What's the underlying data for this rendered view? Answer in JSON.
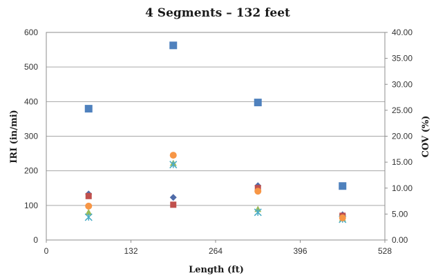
{
  "chart_data": {
    "type": "scatter",
    "title": "4 Segments – 132 feet",
    "xlabel": "Length (ft)",
    "ylabel": "IRI (in/mi)",
    "y2label": "COV (%)",
    "xlim": [
      0,
      528
    ],
    "ylim": [
      0,
      600
    ],
    "y2lim": [
      0,
      40
    ],
    "x_ticks": [
      "0",
      "132",
      "264",
      "396",
      "528"
    ],
    "y_ticks": [
      "0",
      "100",
      "200",
      "300",
      "400",
      "500",
      "600"
    ],
    "y2_ticks": [
      "0.00",
      "5.00",
      "10.00",
      "15.00",
      "20.00",
      "25.00",
      "30.00",
      "35.00",
      "40.00"
    ],
    "grid": true,
    "legend": "none",
    "series": [
      {
        "marker": "square",
        "color": "#4f81bd",
        "axis": "y2",
        "points": [
          [
            66,
            25.3
          ],
          [
            198,
            37.5
          ],
          [
            330,
            26.5
          ],
          [
            462,
            10.4
          ]
        ]
      },
      {
        "marker": "diamond",
        "color": "#4f6ba8",
        "axis": "y",
        "points": [
          [
            66,
            133
          ],
          [
            198,
            123
          ],
          [
            330,
            157
          ],
          [
            462,
            73
          ]
        ]
      },
      {
        "marker": "square",
        "color": "#c0504d",
        "axis": "y",
        "points": [
          [
            66,
            127
          ],
          [
            198,
            102
          ],
          [
            330,
            150
          ],
          [
            462,
            70
          ]
        ]
      },
      {
        "marker": "triangle",
        "color": "#9bbb59",
        "axis": "y",
        "points": [
          [
            66,
            80
          ],
          [
            198,
            222
          ],
          [
            330,
            89
          ],
          [
            462,
            62
          ]
        ]
      },
      {
        "marker": "x",
        "color": "#4bacc6",
        "axis": "y",
        "points": [
          [
            66,
            66
          ],
          [
            198,
            218
          ],
          [
            330,
            80
          ],
          [
            462,
            60
          ]
        ]
      },
      {
        "marker": "circle",
        "color": "#f79646",
        "axis": "y",
        "points": [
          [
            66,
            98
          ],
          [
            198,
            245
          ],
          [
            330,
            141
          ],
          [
            462,
            64
          ]
        ]
      }
    ]
  }
}
